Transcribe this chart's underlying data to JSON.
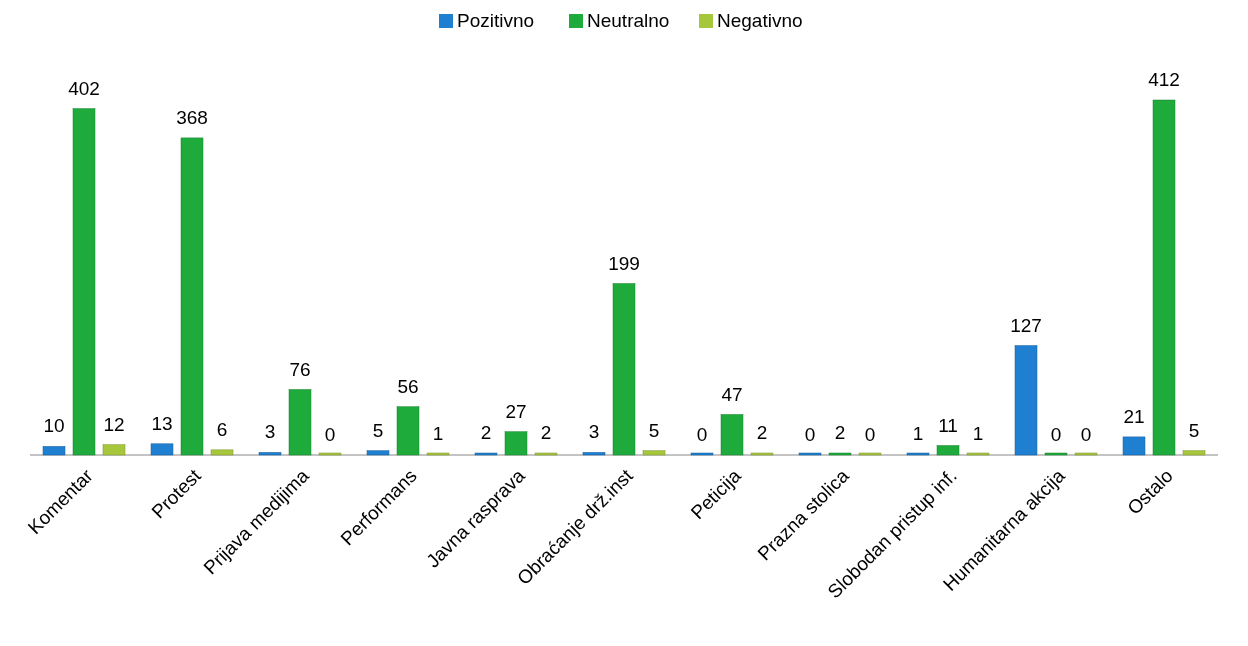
{
  "chart_data": {
    "type": "bar",
    "categories": [
      "Komentar",
      "Protest",
      "Prijava medijima",
      "Performans",
      "Javna rasprava",
      "Obraćanje drž.inst",
      "Peticija",
      "Prazna stolica",
      "Slobodan pristup inf.",
      "Humanitarna akcija",
      "Ostalo"
    ],
    "series": [
      {
        "name": "Pozitivno",
        "color": "#1f7fd0",
        "values": [
          10,
          13,
          3,
          5,
          2,
          3,
          0,
          0,
          1,
          127,
          21
        ]
      },
      {
        "name": "Neutralno",
        "color": "#1faa3c",
        "values": [
          402,
          368,
          76,
          56,
          27,
          199,
          47,
          2,
          11,
          0,
          412
        ]
      },
      {
        "name": "Negativno",
        "color": "#a6c63c",
        "values": [
          12,
          6,
          0,
          1,
          2,
          5,
          2,
          0,
          1,
          0,
          5
        ]
      }
    ],
    "data_labels": true,
    "legend": "top"
  }
}
